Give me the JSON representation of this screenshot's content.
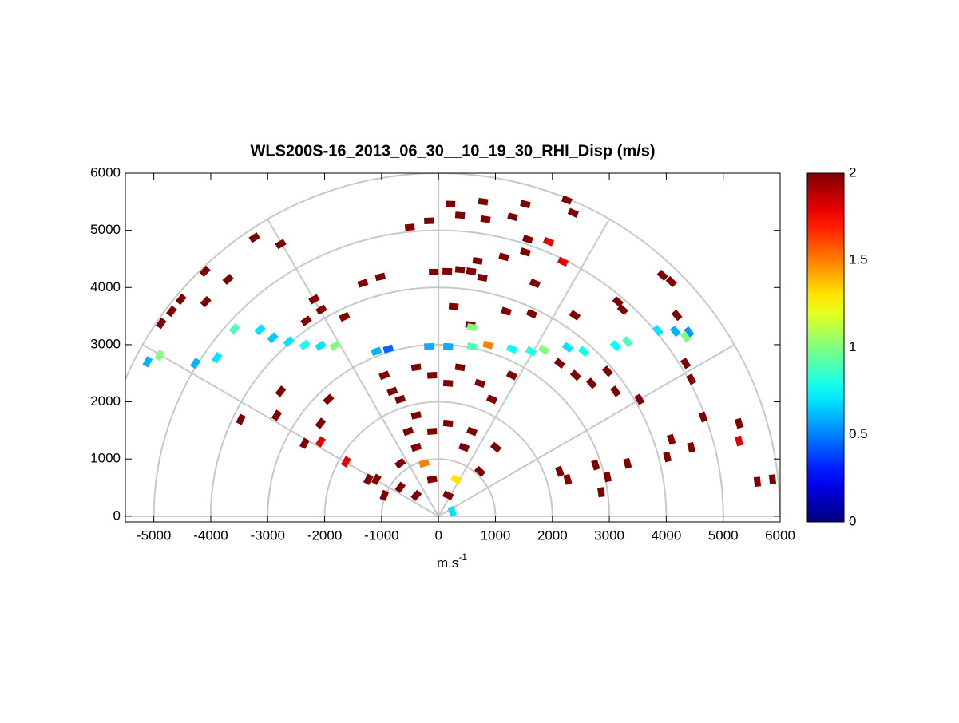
{
  "chart_data": {
    "type": "polar-scatter",
    "title": "WLS200S-16_2013_06_30__10_19_30_RHI_Disp (m/s)",
    "xlabel": {
      "base": "m.s",
      "sup": "-1"
    },
    "xlim": [
      -5500,
      6000
    ],
    "ylim": [
      -100,
      6000
    ],
    "xticks": [
      -5000,
      -4000,
      -3000,
      -2000,
      -1000,
      0,
      1000,
      2000,
      3000,
      4000,
      5000,
      6000
    ],
    "yticks": [
      0,
      1000,
      2000,
      3000,
      4000,
      5000,
      6000
    ],
    "polar_grid": {
      "rings": [
        1000,
        2000,
        3000,
        4000,
        5000,
        6000
      ],
      "spokes_deg": [
        0,
        30,
        60,
        90,
        120,
        150,
        180
      ]
    },
    "colormap": "jet",
    "clim": [
      0,
      2
    ],
    "cticks": [
      0,
      0.5,
      1,
      1.5,
      2
    ],
    "x": [
      210,
      784,
      1526,
      378,
      -168,
      2254,
      2366,
      1302,
      826,
      1932,
      2184,
      1568,
      -504,
      -3234,
      -2772,
      -4102,
      -3696,
      -4522,
      -4690,
      -4872,
      -1330,
      -1022,
      686,
      574,
      378,
      154,
      -84,
      770,
      1148,
      1526,
      1694,
      3934,
      4088,
      3150,
      3234,
      -2184,
      -2058,
      -4088,
      -2324,
      -1652,
      266,
      560,
      1190,
      1638,
      2394,
      4186,
      588,
      -3584,
      -3136,
      -2912,
      -2632,
      -2352,
      -2072,
      -1820,
      -5110,
      -4900,
      -4270,
      -3892,
      2268,
      2548,
      3108,
      3318,
      3850,
      4158,
      4396,
      4340,
      1848,
      1624,
      1288,
      868,
      588,
      168,
      -168,
      -882,
      -1092,
      -952,
      -812,
      -672,
      -392,
      -112,
      168,
      378,
      728,
      938,
      1288,
      2128,
      2408,
      2688,
      2968,
      3108,
      3528,
      4340,
      4438,
      4648,
      5278,
      5278,
      4438,
      4088,
      4018,
      3318,
      2968,
      2758,
      2268,
      2128,
      2856,
      5866,
      5600,
      -1932,
      -2072,
      -2772,
      -2842,
      -3472,
      -2352,
      -2072,
      -1624,
      -1232,
      -392,
      -112,
      168,
      448,
      728,
      -392,
      -672,
      -112,
      168,
      -672,
      -952,
      -392,
      308,
      -252,
      238,
      -532,
      588,
      1008,
      -1092
    ],
    "y": [
      5460,
      5502,
      5460,
      5264,
      5166,
      5530,
      5306,
      5236,
      5194,
      4802,
      4452,
      4844,
      5054,
      4872,
      4760,
      4284,
      4144,
      3794,
      3584,
      3374,
      4074,
      4186,
      4466,
      4284,
      4312,
      4284,
      4270,
      4172,
      4536,
      4620,
      4074,
      4214,
      4102,
      3752,
      3612,
      3794,
      3612,
      3752,
      3416,
      3486,
      3668,
      3346,
      3584,
      3542,
      3514,
      3514,
      3304,
      3276,
      3262,
      3122,
      3052,
      2996,
      2982,
      2982,
      2702,
      2814,
      2674,
      2772,
      2954,
      2884,
      2982,
      3052,
      3248,
      3234,
      3220,
      3136,
      2912,
      2884,
      2926,
      2996,
      2968,
      2968,
      2968,
      2926,
      2884,
      2464,
      2184,
      2044,
      2604,
      2464,
      2324,
      2604,
      2324,
      2044,
      2464,
      2674,
      2464,
      2324,
      2534,
      2184,
      2044,
      2674,
      2394,
      1736,
      1624,
      1316,
      1204,
      1344,
      1036,
      924,
      686,
      896,
      644,
      784,
      420,
      644,
      602,
      2044,
      1624,
      2184,
      1764,
      1694,
      1274,
      1302,
      952,
      644,
      1764,
      1484,
      1624,
      1204,
      784,
      1204,
      924,
      644,
      364,
      504,
      364,
      364,
      644,
      924,
      84,
      1484,
      1484,
      1204,
      644
    ],
    "values": [
      2,
      2,
      2,
      2,
      2,
      2,
      2,
      2,
      2,
      1.8,
      1.8,
      2,
      2,
      2,
      2,
      2,
      2,
      2,
      2,
      2,
      2,
      2,
      2,
      2,
      2,
      2,
      2,
      2,
      2,
      2,
      2,
      2,
      2,
      2,
      2,
      2,
      2,
      2,
      2,
      2,
      2,
      2,
      2,
      2,
      2,
      2,
      1,
      0.9,
      0.7,
      0.65,
      0.7,
      0.8,
      0.7,
      1,
      0.6,
      1,
      0.6,
      0.7,
      0.7,
      0.8,
      0.75,
      0.9,
      0.7,
      0.6,
      0.55,
      1,
      1,
      0.8,
      0.75,
      1.5,
      0.9,
      0.6,
      0.6,
      0.45,
      0.6,
      2,
      2,
      2,
      2,
      2,
      2,
      2,
      2,
      2,
      2,
      2,
      2,
      2,
      2,
      2,
      2,
      2,
      2,
      2,
      2,
      1.8,
      2,
      2,
      2,
      2,
      2,
      2,
      2,
      2,
      2,
      2,
      2,
      2,
      2,
      2,
      2,
      2,
      2,
      1.8,
      1.8,
      2,
      2,
      2,
      2,
      2,
      2,
      2,
      2,
      2,
      2,
      2,
      2,
      2,
      1.3,
      1.5,
      0.7,
      2,
      2,
      2,
      2
    ]
  }
}
